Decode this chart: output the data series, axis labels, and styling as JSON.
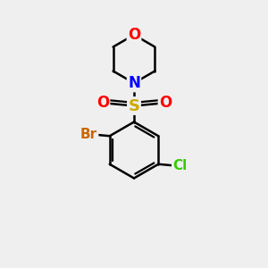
{
  "background_color": "#efefef",
  "atom_colors": {
    "C": "#000000",
    "N": "#0000ff",
    "O": "#ff0000",
    "S": "#ccaa00",
    "Br": "#cc6600",
    "Cl": "#33cc00"
  },
  "bond_color": "#000000",
  "bond_width": 1.8,
  "font_size": 11
}
